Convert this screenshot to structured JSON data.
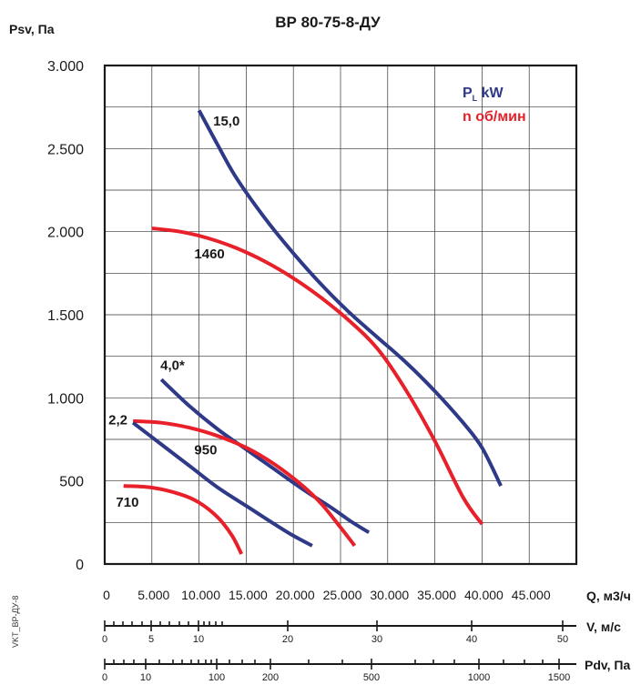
{
  "side_label": "VKT_ВР-ДУ-8",
  "chart_data": {
    "type": "line",
    "title": "ВР 80-75-8-ДУ",
    "ylabel": "Psv, Па",
    "xlabel": "Q, м3/ч",
    "ylim": [
      0,
      3000
    ],
    "xlim": [
      0,
      50000
    ],
    "yticks": [
      0,
      500,
      1000,
      1500,
      2000,
      2500,
      3000
    ],
    "ytick_labels": [
      "0",
      "500",
      "1.000",
      "1.500",
      "2.000",
      "2.500",
      "3.000"
    ],
    "xticks": [
      0,
      5000,
      10000,
      15000,
      20000,
      25000,
      30000,
      35000,
      40000,
      45000
    ],
    "xtick_labels": [
      "0",
      "5.000",
      "10.000",
      "15.000",
      "20.000",
      "25.000",
      "30.000",
      "35.000",
      "40.000",
      "45.000"
    ],
    "grid": true,
    "legend": {
      "position": "top-right",
      "items": [
        {
          "text_main": "P",
          "text_sub": "L",
          "text_rest": " kW",
          "color": "#2e3a87"
        },
        {
          "text_main": "n об/мин",
          "text_sub": "",
          "text_rest": "",
          "color": "#e8202a"
        }
      ]
    },
    "series": [
      {
        "name": "15,0",
        "kind": "power",
        "color": "#2e3a87",
        "x": [
          10000,
          12000,
          14000,
          17000,
          20000,
          23000,
          26000,
          29000,
          32000,
          35000,
          38000,
          40000,
          42000
        ],
        "y": [
          2730,
          2520,
          2320,
          2080,
          1870,
          1680,
          1510,
          1360,
          1210,
          1040,
          850,
          700,
          470
        ]
      },
      {
        "name": "1460",
        "kind": "speed",
        "color": "#e8202a",
        "x": [
          5000,
          8000,
          11000,
          14000,
          17000,
          20000,
          23000,
          26000,
          29000,
          32000,
          35000,
          38000,
          40000
        ],
        "y": [
          2020,
          2000,
          1960,
          1900,
          1820,
          1720,
          1600,
          1460,
          1290,
          1040,
          740,
          400,
          240
        ]
      },
      {
        "name": "4,0*",
        "kind": "power",
        "color": "#2e3a87",
        "x": [
          6000,
          9000,
          12000,
          15000,
          18000,
          21000,
          24000,
          26000,
          28000
        ],
        "y": [
          1110,
          950,
          810,
          690,
          570,
          450,
          340,
          260,
          190
        ]
      },
      {
        "name": "950",
        "kind": "speed",
        "color": "#e8202a",
        "x": [
          3000,
          6000,
          9000,
          12000,
          15000,
          18000,
          21000,
          23000,
          25000,
          26500
        ],
        "y": [
          860,
          850,
          820,
          770,
          700,
          600,
          470,
          360,
          220,
          110
        ]
      },
      {
        "name": "2,2",
        "kind": "power",
        "color": "#2e3a87",
        "x": [
          3000,
          6000,
          9000,
          12000,
          15000,
          18000,
          20000,
          22000
        ],
        "y": [
          850,
          720,
          590,
          460,
          350,
          240,
          170,
          110
        ]
      },
      {
        "name": "710",
        "kind": "speed",
        "color": "#e8202a",
        "x": [
          2000,
          5000,
          8000,
          10000,
          12000,
          13500,
          14500
        ],
        "y": [
          470,
          460,
          420,
          370,
          280,
          170,
          60
        ]
      }
    ],
    "curve_labels": [
      {
        "text": "15,0",
        "x": 11500,
        "y": 2640
      },
      {
        "text": "1460",
        "x": 9500,
        "y": 1840
      },
      {
        "text": "4,0*",
        "x": 5900,
        "y": 1170
      },
      {
        "text": "2,2",
        "x": 400,
        "y": 840
      },
      {
        "text": "950",
        "x": 9500,
        "y": 660
      },
      {
        "text": "710",
        "x": 1200,
        "y": 345
      }
    ],
    "secondary_axes": [
      {
        "label": "V, м/с",
        "tick_labels": [
          {
            "text": "0",
            "value": 0
          },
          {
            "text": "5",
            "value": 5
          },
          {
            "text": "10",
            "value": 10
          },
          {
            "text": "20",
            "value": 20
          },
          {
            "text": "30",
            "value": 30
          },
          {
            "text": "40",
            "value": 40
          },
          {
            "text": "50",
            "value": 50
          }
        ]
      },
      {
        "label": "Pdv, Па",
        "tick_labels": [
          {
            "text": "0",
            "value": 0
          },
          {
            "text": "10",
            "value": 10
          },
          {
            "text": "100",
            "value": 100
          },
          {
            "text": "200",
            "value": 200
          },
          {
            "text": "500",
            "value": 500
          },
          {
            "text": "1000",
            "value": 1000
          },
          {
            "text": "1500",
            "value": 1500
          }
        ]
      }
    ]
  }
}
